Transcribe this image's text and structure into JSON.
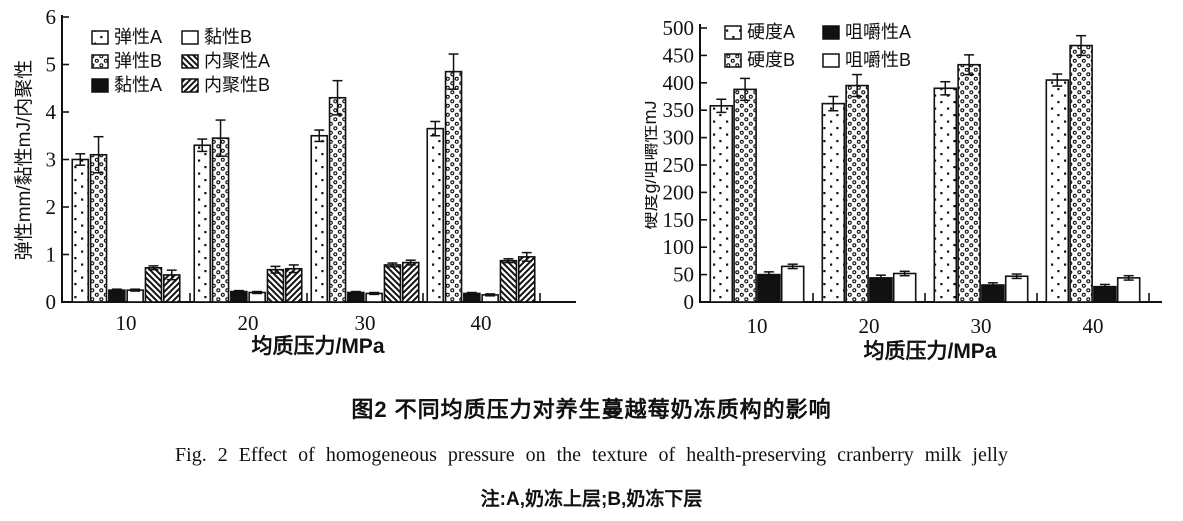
{
  "figure": {
    "caption_zh": "图2  不同均质压力对养生蔓越莓奶冻质构的影响",
    "caption_en": "Fig. 2  Effect of homogeneous pressure on the texture of health-preserving cranberry milk jelly",
    "note": "注:A,奶冻上层;B,奶冻下层"
  },
  "chart_data": [
    {
      "type": "bar",
      "ylabel": "弹性mm/黏性mJ/内聚性",
      "xlabel": "均质压力/MPa",
      "ylim": [
        0,
        6
      ],
      "yticks": [
        0,
        1,
        2,
        3,
        4,
        5,
        6
      ],
      "categories": [
        "10",
        "20",
        "30",
        "40"
      ],
      "grid": false,
      "legend_position": "top-left-inside",
      "legend_columns": 2,
      "series": [
        {
          "name": "弹性A",
          "pattern": "dots-sparse",
          "values": [
            3.0,
            3.3,
            3.5,
            3.65
          ],
          "errors": [
            0.12,
            0.13,
            0.12,
            0.15
          ]
        },
        {
          "name": "弹性B",
          "pattern": "dots-dense",
          "values": [
            3.1,
            3.45,
            4.3,
            4.85
          ],
          "errors": [
            0.38,
            0.38,
            0.36,
            0.37
          ]
        },
        {
          "name": "黏性A",
          "pattern": "solid",
          "values": [
            0.25,
            0.22,
            0.2,
            0.18
          ],
          "errors": [
            0.02,
            0.02,
            0.02,
            0.02
          ]
        },
        {
          "name": "黏性B",
          "pattern": "open",
          "values": [
            0.25,
            0.2,
            0.18,
            0.15
          ],
          "errors": [
            0.02,
            0.02,
            0.02,
            0.02
          ]
        },
        {
          "name": "内聚性A",
          "pattern": "hatch-back",
          "values": [
            0.72,
            0.68,
            0.78,
            0.87
          ],
          "errors": [
            0.04,
            0.07,
            0.04,
            0.04
          ]
        },
        {
          "name": "内聚性B",
          "pattern": "hatch-fwd",
          "values": [
            0.57,
            0.7,
            0.83,
            0.95
          ],
          "errors": [
            0.1,
            0.08,
            0.05,
            0.09
          ]
        }
      ]
    },
    {
      "type": "bar",
      "ylabel": "硬度g/咀嚼性mJ",
      "xlabel": "均质压力/MPa",
      "ylim": [
        0,
        500
      ],
      "yticks": [
        0,
        50,
        100,
        150,
        200,
        250,
        300,
        350,
        400,
        450,
        500
      ],
      "categories": [
        "10",
        "20",
        "30",
        "40"
      ],
      "grid": false,
      "legend_position": "top-left-inside",
      "legend_columns": 2,
      "series": [
        {
          "name": "硬度A",
          "pattern": "dots-sparse",
          "values": [
            358,
            362,
            390,
            405
          ],
          "errors": [
            12,
            13,
            12,
            11
          ]
        },
        {
          "name": "硬度B",
          "pattern": "dots-dense",
          "values": [
            388,
            395,
            433,
            468
          ],
          "errors": [
            20,
            20,
            18,
            18
          ]
        },
        {
          "name": "咀嚼性A",
          "pattern": "solid",
          "values": [
            50,
            44,
            31,
            28
          ],
          "errors": [
            5,
            5,
            4,
            4
          ]
        },
        {
          "name": "咀嚼性B",
          "pattern": "open",
          "values": [
            65,
            52,
            47,
            44
          ],
          "errors": [
            4,
            4,
            4,
            4
          ]
        }
      ]
    }
  ],
  "colors": {
    "ink": "#111111",
    "background": "#ffffff"
  }
}
